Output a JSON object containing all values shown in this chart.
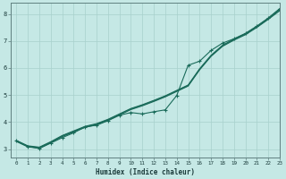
{
  "title": "",
  "xlabel": "Humidex (Indice chaleur)",
  "ylabel": "",
  "bg_color": "#c5e8e5",
  "grid_color": "#a8d0cc",
  "line_color": "#1a6b5a",
  "xlim": [
    -0.5,
    23
  ],
  "ylim": [
    2.7,
    8.4
  ],
  "xticks": [
    0,
    1,
    2,
    3,
    4,
    5,
    6,
    7,
    8,
    9,
    10,
    11,
    12,
    13,
    14,
    15,
    16,
    17,
    18,
    19,
    20,
    21,
    22,
    23
  ],
  "yticks": [
    3,
    4,
    5,
    6,
    7,
    8
  ],
  "line_straight_x": [
    0,
    1,
    2,
    3,
    4,
    5,
    6,
    7,
    8,
    9,
    10,
    11,
    12,
    13,
    14,
    15,
    16,
    17,
    18,
    19,
    20,
    21,
    22,
    23
  ],
  "line_straight_y": [
    3.3,
    3.1,
    3.05,
    3.25,
    3.48,
    3.65,
    3.82,
    3.92,
    4.08,
    4.28,
    4.48,
    4.62,
    4.78,
    4.95,
    5.15,
    5.35,
    5.95,
    6.45,
    6.82,
    7.05,
    7.25,
    7.52,
    7.82,
    8.15
  ],
  "line_straight2_x": [
    0,
    1,
    2,
    3,
    4,
    5,
    6,
    7,
    8,
    9,
    10,
    11,
    12,
    13,
    14,
    15,
    16,
    17,
    18,
    19,
    20,
    21,
    22,
    23
  ],
  "line_straight2_y": [
    3.28,
    3.08,
    3.03,
    3.23,
    3.46,
    3.63,
    3.8,
    3.9,
    4.06,
    4.26,
    4.46,
    4.6,
    4.76,
    4.93,
    5.13,
    5.33,
    5.93,
    6.43,
    6.8,
    7.03,
    7.23,
    7.5,
    7.8,
    8.12
  ],
  "line_straight3_x": [
    0,
    1,
    2,
    3,
    4,
    5,
    6,
    7,
    8,
    9,
    10,
    11,
    12,
    13,
    14,
    15,
    16,
    17,
    18,
    19,
    20,
    21,
    22,
    23
  ],
  "line_straight3_y": [
    3.32,
    3.12,
    3.07,
    3.27,
    3.5,
    3.67,
    3.84,
    3.94,
    4.1,
    4.3,
    4.5,
    4.64,
    4.8,
    4.97,
    5.17,
    5.37,
    5.97,
    6.47,
    6.84,
    7.07,
    7.27,
    7.54,
    7.84,
    8.18
  ],
  "line_marked_x": [
    0,
    1,
    2,
    3,
    4,
    5,
    6,
    7,
    8,
    9,
    10,
    11,
    12,
    13,
    14,
    15,
    16,
    17,
    18,
    19,
    20,
    21,
    22,
    23
  ],
  "line_marked_y": [
    3.3,
    3.1,
    3.02,
    3.22,
    3.42,
    3.6,
    3.82,
    3.88,
    4.05,
    4.25,
    4.35,
    4.3,
    4.38,
    4.45,
    4.98,
    6.1,
    6.25,
    6.65,
    6.92,
    7.08,
    7.28,
    7.55,
    7.85,
    8.2
  ]
}
